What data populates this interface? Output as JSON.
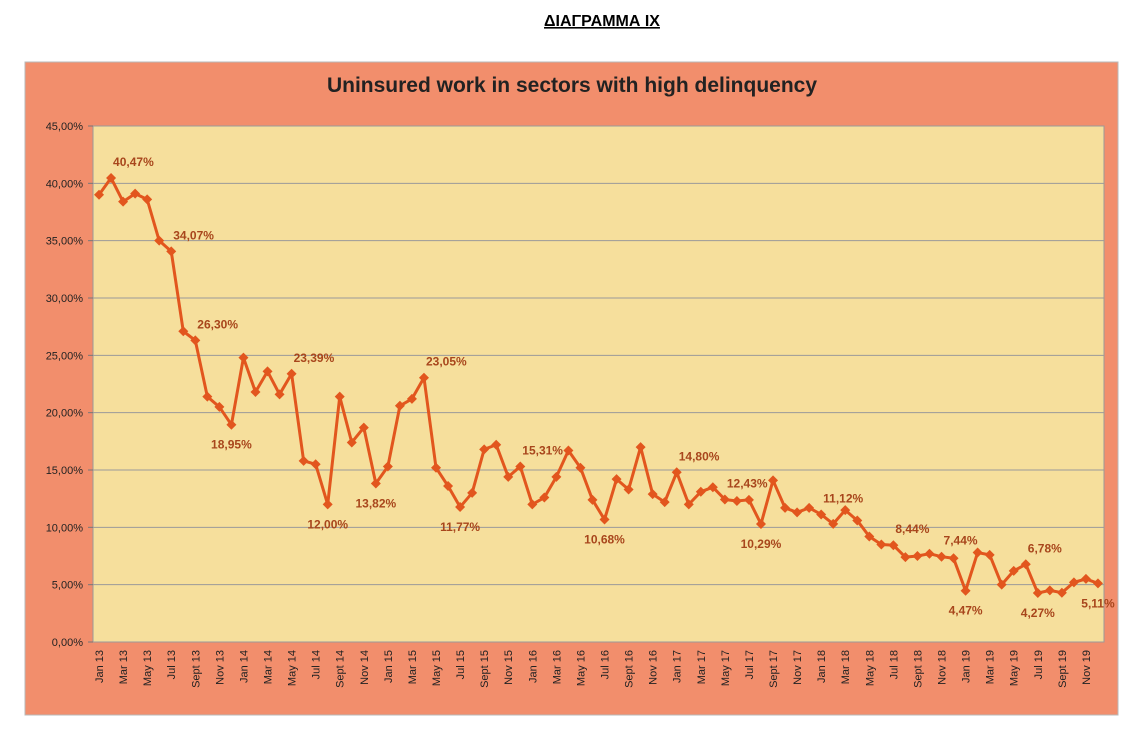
{
  "heading": "ΔΙΑΓΡΑΜΜΑ ΙΧ",
  "chart_data": {
    "type": "line",
    "title": "Uninsured work in sectors with high delinquency",
    "categories": [
      "Jan 13",
      null,
      "Mar 13",
      null,
      "May 13",
      null,
      "Jul 13",
      null,
      "Sept 13",
      null,
      "Nov 13",
      null,
      "Jan 14",
      null,
      "Mar 14",
      null,
      "May 14",
      null,
      "Jul 14",
      null,
      "Sept 14",
      null,
      "Nov 14",
      null,
      "Jan 15",
      null,
      "Mar 15",
      null,
      "May 15",
      null,
      "Jul 15",
      null,
      "Sept 15",
      null,
      "Nov 15",
      null,
      "Jan 16",
      null,
      "Mar 16",
      null,
      "May 16",
      null,
      "Jul 16",
      null,
      "Sept 16",
      null,
      "Nov 16",
      null,
      "Jan 17",
      null,
      "Mar 17",
      null,
      "May 17",
      null,
      "Jul 17",
      null,
      "Sept 17",
      null,
      "Nov 17",
      null,
      "Jan 18",
      null,
      "Mar 18",
      null,
      "May 18",
      null,
      "Jul 18",
      null,
      "Sept 18",
      null,
      "Nov 18",
      null,
      "Jan 19",
      null,
      "Mar 19",
      null,
      "May 19",
      null,
      "Jul 19",
      null,
      "Sept 19",
      null,
      "Nov 19",
      null
    ],
    "values": [
      39.0,
      40.47,
      38.4,
      39.1,
      38.6,
      35.0,
      34.07,
      27.1,
      26.3,
      21.4,
      20.5,
      18.95,
      24.8,
      21.8,
      23.6,
      21.6,
      23.39,
      15.8,
      15.5,
      12.0,
      21.4,
      17.4,
      18.7,
      13.82,
      15.3,
      20.6,
      21.2,
      23.05,
      15.2,
      13.6,
      11.77,
      13.0,
      16.8,
      17.2,
      14.4,
      15.31,
      12.0,
      12.6,
      14.4,
      16.7,
      15.2,
      12.4,
      10.68,
      14.2,
      13.3,
      17.0,
      12.9,
      12.2,
      14.8,
      12.0,
      13.1,
      13.5,
      12.43,
      12.3,
      12.4,
      10.29,
      14.1,
      11.7,
      11.3,
      11.7,
      11.12,
      10.3,
      11.5,
      10.6,
      9.2,
      8.5,
      8.44,
      7.4,
      7.5,
      7.7,
      7.44,
      7.3,
      4.47,
      7.8,
      7.6,
      5.0,
      6.2,
      6.78,
      4.27,
      4.5,
      4.3,
      5.2,
      5.5,
      5.11
    ],
    "value_labels": [
      null,
      "40,47%",
      null,
      null,
      null,
      null,
      "34,07%",
      null,
      "26,30%",
      null,
      null,
      "18,95%",
      null,
      null,
      null,
      null,
      "23,39%",
      null,
      null,
      "12,00%",
      null,
      null,
      null,
      "13,82%",
      null,
      null,
      null,
      "23,05%",
      null,
      null,
      "11,77%",
      null,
      null,
      null,
      null,
      "15,31%",
      null,
      null,
      null,
      null,
      null,
      null,
      "10,68%",
      null,
      null,
      null,
      null,
      null,
      "14,80%",
      null,
      null,
      null,
      "12,43%",
      null,
      null,
      "10,29%",
      null,
      null,
      null,
      null,
      "11,12%",
      null,
      null,
      null,
      null,
      null,
      "8,44%",
      null,
      null,
      null,
      "7,44%",
      null,
      "4,47%",
      null,
      null,
      null,
      null,
      "6,78%",
      "4,27%",
      null,
      null,
      null,
      null,
      "5,11%"
    ],
    "color": "#e2561e",
    "ylim": [
      0,
      45
    ],
    "yticks": [
      {
        "value": 0,
        "label": "0,00%"
      },
      {
        "value": 5,
        "label": "5,00%"
      },
      {
        "value": 10,
        "label": "10,00%"
      },
      {
        "value": 15,
        "label": "15,00%"
      },
      {
        "value": 20,
        "label": "20,00%"
      },
      {
        "value": 25,
        "label": "25,00%"
      },
      {
        "value": 30,
        "label": "30,00%"
      },
      {
        "value": 35,
        "label": "35,00%"
      },
      {
        "value": 40,
        "label": "40,00%"
      },
      {
        "value": 45,
        "label": "45,00%"
      }
    ],
    "grid": true
  }
}
